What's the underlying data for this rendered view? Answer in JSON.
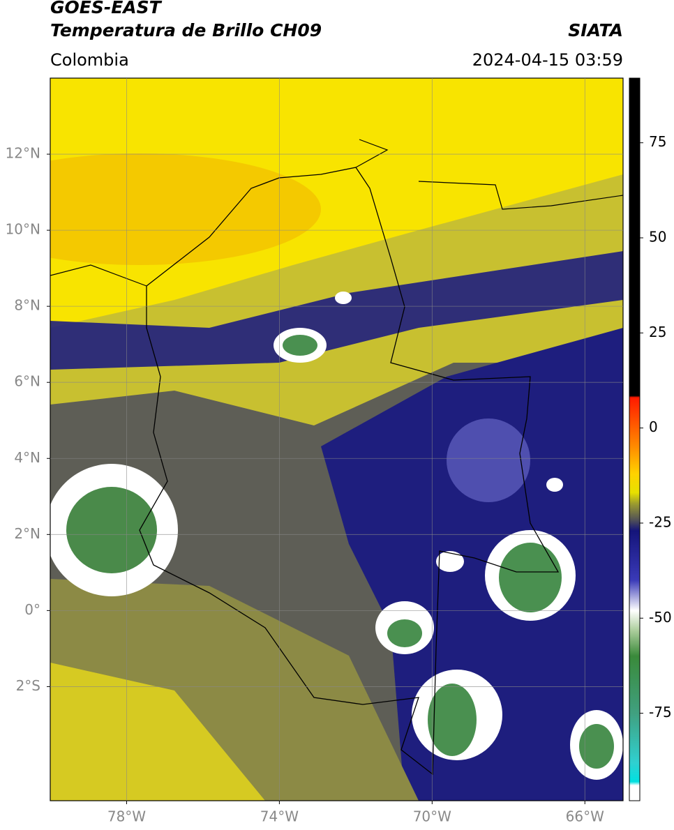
{
  "header": {
    "title": "GOES-EAST",
    "subtitle": "Temperatura de Brillo CH09",
    "source": "SIATA",
    "region": "Colombia",
    "datetime": "2024-04-15 03:59"
  },
  "map": {
    "xlim": [
      -80,
      -65
    ],
    "ylim": [
      -5,
      14
    ],
    "xticks": [
      {
        "value": -78,
        "label": "78°W"
      },
      {
        "value": -74,
        "label": "74°W"
      },
      {
        "value": -70,
        "label": "70°W"
      },
      {
        "value": -66,
        "label": "66°W"
      }
    ],
    "yticks": [
      {
        "value": 12,
        "label": "12°N"
      },
      {
        "value": 10,
        "label": "10°N"
      },
      {
        "value": 8,
        "label": "8°N"
      },
      {
        "value": 6,
        "label": "6°N"
      },
      {
        "value": 4,
        "label": "4°N"
      },
      {
        "value": 2,
        "label": "2°N"
      },
      {
        "value": 0,
        "label": "0°"
      },
      {
        "value": -2,
        "label": "2°S"
      }
    ],
    "grid": true
  },
  "colorbar": {
    "lim": [
      -98,
      92
    ],
    "ticks": [
      75,
      50,
      25,
      0,
      -25,
      -50,
      -75
    ],
    "colormap": [
      {
        "value": 92,
        "color": "#000000"
      },
      {
        "value": 8.5,
        "color": "#000000"
      },
      {
        "value": 8,
        "color": "#ff1a00"
      },
      {
        "value": -5,
        "color": "#ff8c00"
      },
      {
        "value": -12,
        "color": "#ffd200"
      },
      {
        "value": -17,
        "color": "#e8e000"
      },
      {
        "value": -20,
        "color": "#9a9a30"
      },
      {
        "value": -24,
        "color": "#555555"
      },
      {
        "value": -27,
        "color": "#14147a"
      },
      {
        "value": -40,
        "color": "#3a3ab8"
      },
      {
        "value": -48,
        "color": "#ffffff"
      },
      {
        "value": -53,
        "color": "#b0d0a0"
      },
      {
        "value": -60,
        "color": "#3a8a3a"
      },
      {
        "value": -75,
        "color": "#40a080"
      },
      {
        "value": -88,
        "color": "#30d0d0"
      },
      {
        "value": -93,
        "color": "#00e0e0"
      },
      {
        "value": -94,
        "color": "#ffffff"
      },
      {
        "value": -98,
        "color": "#ffffff"
      }
    ]
  }
}
